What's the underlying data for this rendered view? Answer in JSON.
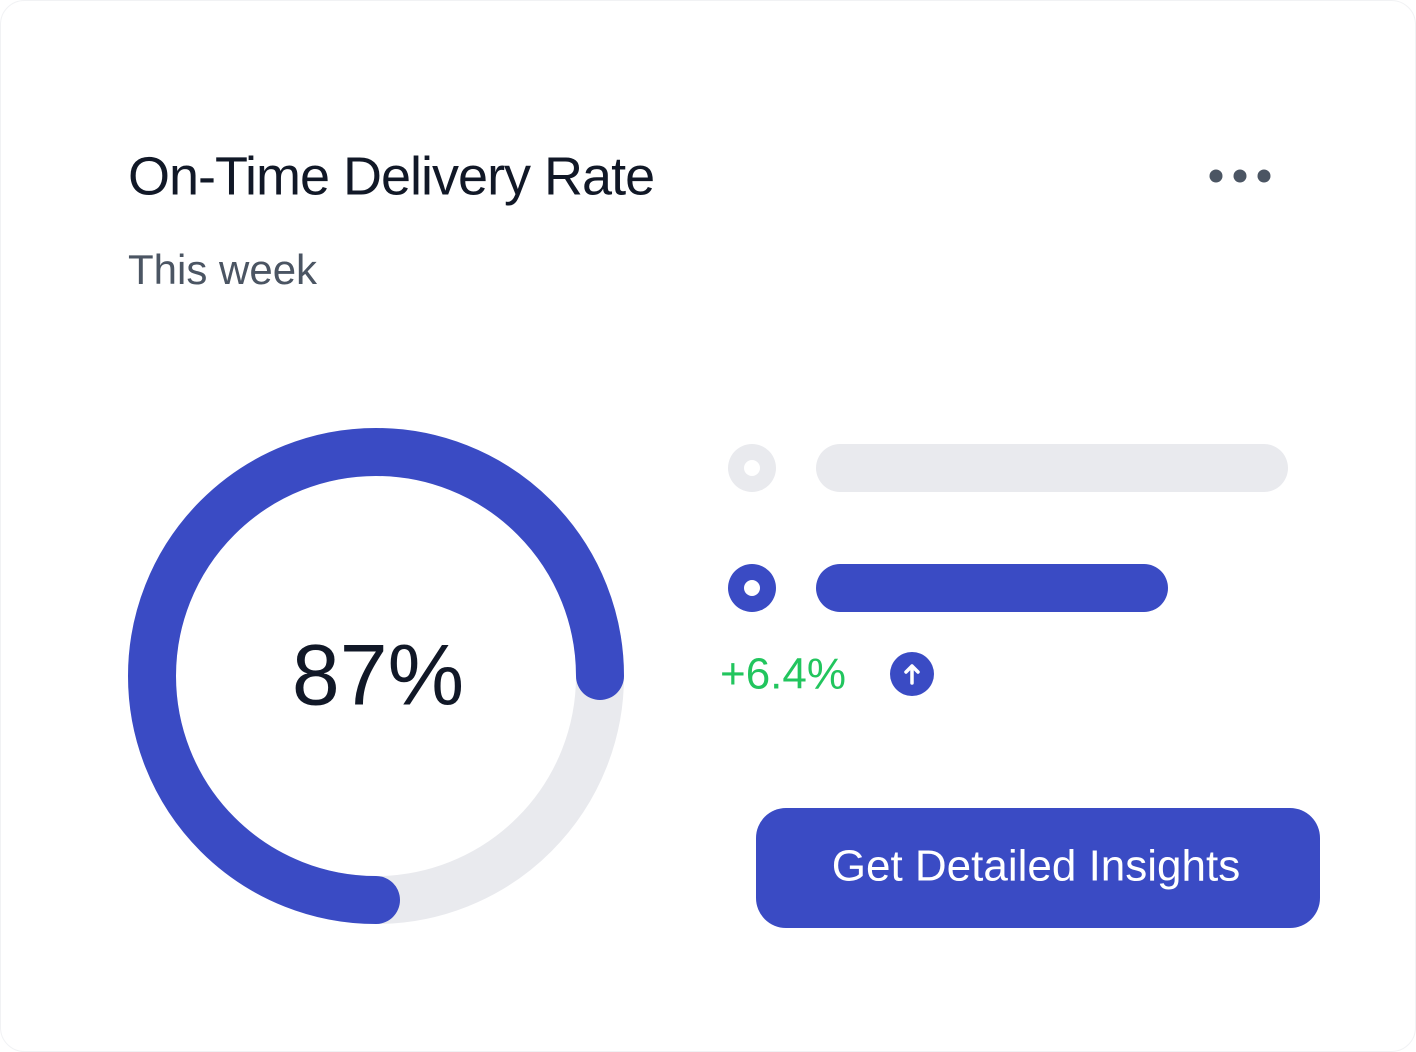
{
  "card": {
    "title": "On-Time Delivery Rate",
    "subtitle": "This week",
    "gauge_label": "87%",
    "change": "+6.4%",
    "button": "Get Detailed Insights"
  }
}
